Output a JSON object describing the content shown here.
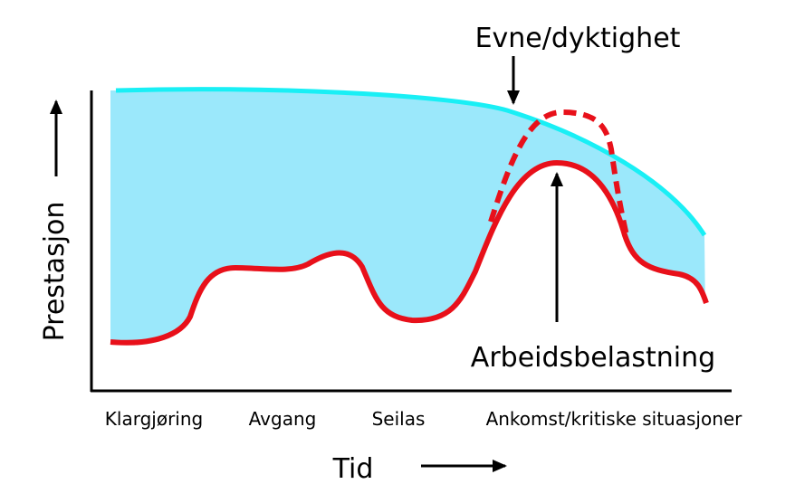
{
  "y_axis_label": "Prestasjon",
  "x_axis_label": "Tid",
  "phases": [
    "Klargjøring",
    "Avgang",
    "Seilas",
    "Ankomst/kritiske situasjoner"
  ],
  "annotations": {
    "capability": "Evne/dyktighet",
    "workload": "Arbeidsbelastning"
  }
}
